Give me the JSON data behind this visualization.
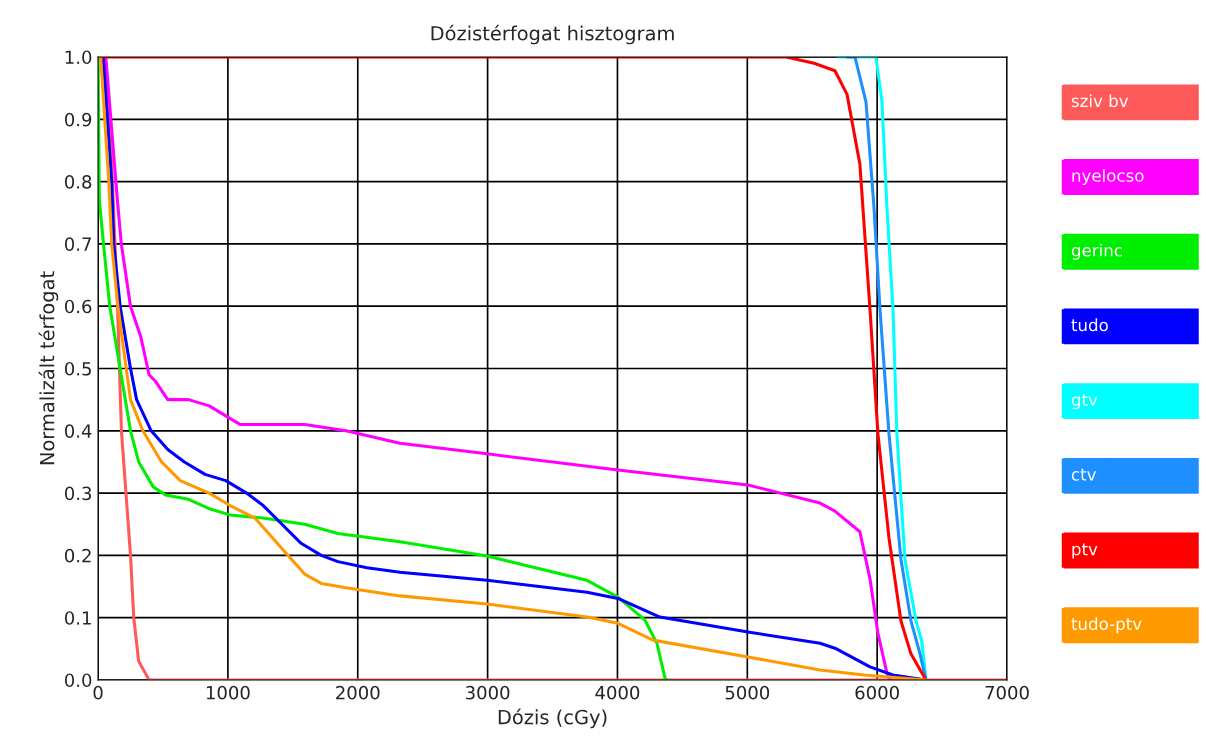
{
  "chart_data": {
    "type": "line",
    "title": "Dózistérfogat hisztogram",
    "xlabel": "Dózis (cGy)",
    "ylabel": "Normalizált térfogat",
    "xlim": [
      0,
      7000
    ],
    "xticks": [
      0,
      1000,
      2000,
      3000,
      4000,
      5000,
      6000,
      7000
    ],
    "ylim": [
      0,
      1
    ],
    "yticks": [
      {
        "value": 0,
        "label": "0.0"
      },
      0.1,
      0.2,
      0.3,
      0.4,
      0.5,
      0.6,
      0.7,
      0.8,
      0.9,
      {
        "value": 1,
        "label": "1.0"
      }
    ],
    "grid": true,
    "legend": "right",
    "marker": "none",
    "line_style": "solid",
    "series": [
      {
        "name": "sziv bv",
        "color": "#ff5a5a",
        "x": [
          0,
          40,
          105,
          150,
          180,
          250,
          275,
          313,
          393,
          7000
        ],
        "values": [
          1,
          1,
          0.83,
          0.6,
          0.4,
          0.2,
          0.1,
          0.03,
          0,
          0
        ]
      },
      {
        "name": "nyelocso",
        "color": "#ff00ff",
        "x": [
          0,
          60,
          147,
          179,
          250,
          330,
          393,
          440,
          537,
          697,
          856,
          1016,
          1096,
          1591,
          1910,
          2325,
          2995,
          4004,
          5005,
          5560,
          5675,
          5867,
          5945,
          6006,
          6075,
          6100
        ],
        "values": [
          1,
          1,
          0.775,
          0.7,
          0.6,
          0.55,
          0.49,
          0.48,
          0.45,
          0.45,
          0.44,
          0.42,
          0.41,
          0.41,
          0.4,
          0.38,
          0.363,
          0.337,
          0.313,
          0.284,
          0.271,
          0.238,
          0.162,
          0.075,
          0.011,
          0
        ]
      },
      {
        "name": "gerinc",
        "color": "#00ee00",
        "x": [
          0,
          5,
          10,
          42,
          90,
          170,
          250,
          313,
          425,
          520,
          697,
          856,
          1016,
          1270,
          1591,
          1847,
          2325,
          2995,
          3765,
          4004,
          4212,
          4304,
          4366,
          4380
        ],
        "values": [
          1,
          0.88,
          0.77,
          0.7,
          0.6,
          0.5,
          0.4,
          0.35,
          0.31,
          0.297,
          0.29,
          0.275,
          0.265,
          0.26,
          0.25,
          0.235,
          0.222,
          0.199,
          0.16,
          0.133,
          0.096,
          0.059,
          0.003,
          0
        ]
      },
      {
        "name": "tudo",
        "color": "#0000ff",
        "x": [
          0,
          40,
          105,
          121,
          170,
          250,
          297,
          409,
          537,
          665,
          824,
          984,
          1144,
          1272,
          1416,
          1560,
          1719,
          1847,
          2071,
          2325,
          2995,
          3765,
          4004,
          4327,
          5005,
          5560,
          5675,
          5945,
          6121,
          6376
        ],
        "values": [
          1,
          1,
          0.8,
          0.7,
          0.6,
          0.5,
          0.45,
          0.4,
          0.37,
          0.35,
          0.33,
          0.32,
          0.3,
          0.28,
          0.25,
          0.22,
          0.2,
          0.19,
          0.18,
          0.173,
          0.16,
          0.141,
          0.131,
          0.101,
          0.077,
          0.059,
          0.051,
          0.021,
          0.008,
          0
        ]
      },
      {
        "name": "gtv",
        "color": "#00ffff",
        "x": [
          5700,
          5991,
          6037,
          6075,
          6122,
          6152,
          6214,
          6299,
          6345,
          6376
        ],
        "values": [
          1,
          1,
          0.928,
          0.76,
          0.594,
          0.395,
          0.194,
          0.095,
          0.061,
          0
        ]
      },
      {
        "name": "ctv",
        "color": "#1e8fff",
        "x": [
          5770,
          5829,
          5914,
          5975,
          6022,
          6091,
          6183,
          6260,
          6330,
          6376
        ],
        "values": [
          1,
          1,
          0.928,
          0.76,
          0.594,
          0.395,
          0.194,
          0.095,
          0.042,
          0
        ]
      },
      {
        "name": "ptv",
        "color": "#ff0000",
        "x": [
          0,
          5300,
          5514,
          5675,
          5768,
          5867,
          5945,
          6006,
          6091,
          6183,
          6260,
          6376
        ],
        "values": [
          1,
          1,
          0.99,
          0.978,
          0.94,
          0.828,
          0.594,
          0.395,
          0.228,
          0.095,
          0.042,
          0
        ]
      },
      {
        "name": "tudo-ptv",
        "color": "#ff9900",
        "x": [
          0,
          20,
          83,
          105,
          153,
          217,
          250,
          345,
          489,
          633,
          856,
          1016,
          1208,
          1336,
          1463,
          1591,
          1719,
          1910,
          2325,
          2995,
          3765,
          4004,
          4274,
          5005,
          5560,
          5898,
          6376
        ],
        "values": [
          1,
          1,
          0.8,
          0.7,
          0.6,
          0.5,
          0.45,
          0.4,
          0.35,
          0.32,
          0.3,
          0.28,
          0.26,
          0.23,
          0.2,
          0.17,
          0.155,
          0.148,
          0.135,
          0.122,
          0.101,
          0.091,
          0.064,
          0.037,
          0.016,
          0.008,
          0
        ]
      }
    ]
  }
}
